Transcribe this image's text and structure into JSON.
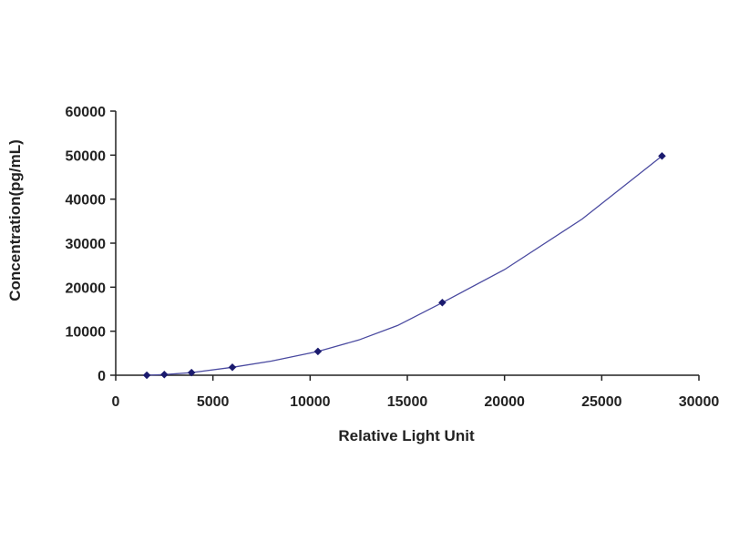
{
  "chart_data": {
    "type": "scatter",
    "title": "",
    "xlabel": "Relative Light Unit",
    "ylabel": "Concentration(pg/mL)",
    "xlim": [
      0,
      30000
    ],
    "ylim": [
      0,
      60000
    ],
    "x_ticks": [
      0,
      5000,
      10000,
      15000,
      20000,
      25000,
      30000
    ],
    "y_ticks": [
      0,
      10000,
      20000,
      30000,
      40000,
      50000,
      60000
    ],
    "grid": false,
    "legend": "none",
    "colors": {
      "marker": "#1a1a6e",
      "curve": "#4a4aa0",
      "axis": "#222222"
    },
    "series": [
      {
        "points": [
          {
            "x": 1600,
            "y": 0
          },
          {
            "x": 2500,
            "y": 150
          },
          {
            "x": 3900,
            "y": 600
          },
          {
            "x": 6000,
            "y": 1800
          },
          {
            "x": 10400,
            "y": 5400
          },
          {
            "x": 16800,
            "y": 16500
          },
          {
            "x": 28100,
            "y": 49800
          }
        ],
        "fit_curve": [
          {
            "x": 1600,
            "y": 0
          },
          {
            "x": 2500,
            "y": 150
          },
          {
            "x": 3900,
            "y": 600
          },
          {
            "x": 6000,
            "y": 1800
          },
          {
            "x": 8000,
            "y": 3200
          },
          {
            "x": 10400,
            "y": 5400
          },
          {
            "x": 12500,
            "y": 8000
          },
          {
            "x": 14500,
            "y": 11300
          },
          {
            "x": 16800,
            "y": 16500
          },
          {
            "x": 20000,
            "y": 24000
          },
          {
            "x": 24000,
            "y": 35500
          },
          {
            "x": 28100,
            "y": 49800
          }
        ]
      }
    ]
  }
}
